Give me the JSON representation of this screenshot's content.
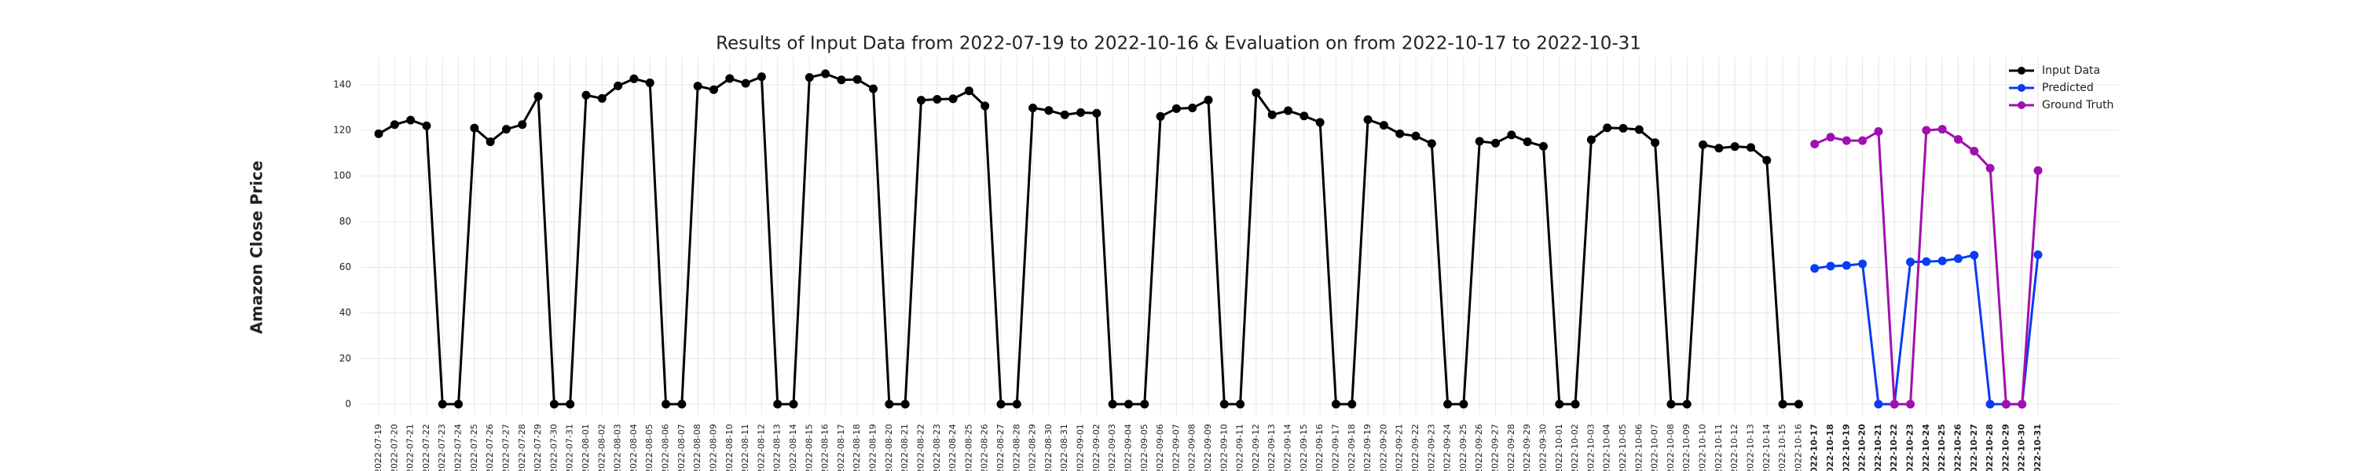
{
  "chart_data": {
    "type": "line",
    "title": "Results of Input Data from 2022-07-19 to 2022-10-16 & Evaluation on from 2022-10-17 to 2022-10-31",
    "ylabel": "Amazon Close Price",
    "categories": [
      "2022-07-19",
      "2022-07-20",
      "2022-07-21",
      "2022-07-22",
      "2022-07-23",
      "2022-07-24",
      "2022-07-25",
      "2022-07-26",
      "2022-07-27",
      "2022-07-28",
      "2022-07-29",
      "2022-07-30",
      "2022-07-31",
      "2022-08-01",
      "2022-08-02",
      "2022-08-03",
      "2022-08-04",
      "2022-08-05",
      "2022-08-06",
      "2022-08-07",
      "2022-08-08",
      "2022-08-09",
      "2022-08-10",
      "2022-08-11",
      "2022-08-12",
      "2022-08-13",
      "2022-08-14",
      "2022-08-15",
      "2022-08-16",
      "2022-08-17",
      "2022-08-18",
      "2022-08-19",
      "2022-08-20",
      "2022-08-21",
      "2022-08-22",
      "2022-08-23",
      "2022-08-24",
      "2022-08-25",
      "2022-08-26",
      "2022-08-27",
      "2022-08-28",
      "2022-08-29",
      "2022-08-30",
      "2022-08-31",
      "2022-09-01",
      "2022-09-02",
      "2022-09-03",
      "2022-09-04",
      "2022-09-05",
      "2022-09-06",
      "2022-09-07",
      "2022-09-08",
      "2022-09-09",
      "2022-09-10",
      "2022-09-11",
      "2022-09-12",
      "2022-09-13",
      "2022-09-14",
      "2022-09-15",
      "2022-09-16",
      "2022-09-17",
      "2022-09-18",
      "2022-09-19",
      "2022-09-20",
      "2022-09-21",
      "2022-09-22",
      "2022-09-23",
      "2022-09-24",
      "2022-09-25",
      "2022-09-26",
      "2022-09-27",
      "2022-09-28",
      "2022-09-29",
      "2022-09-30",
      "2022-10-01",
      "2022-10-02",
      "2022-10-03",
      "2022-10-04",
      "2022-10-05",
      "2022-10-06",
      "2022-10-07",
      "2022-10-08",
      "2022-10-09",
      "2022-10-10",
      "2022-10-11",
      "2022-10-12",
      "2022-10-13",
      "2022-10-14",
      "2022-10-15",
      "2022-10-16",
      "2022-10-17",
      "2022-10-18",
      "2022-10-19",
      "2022-10-20",
      "2022-10-21",
      "2022-10-22",
      "2022-10-23",
      "2022-10-24",
      "2022-10-25",
      "2022-10-26",
      "2022-10-27",
      "2022-10-28",
      "2022-10-29",
      "2022-10-30",
      "2022-10-31"
    ],
    "series": [
      {
        "name": "Input Data",
        "color": "#000000",
        "values": [
          118.5,
          122.5,
          124.5,
          122,
          0,
          0,
          121,
          115,
          120.5,
          122.5,
          134.9,
          0,
          0,
          135.4,
          134,
          139.5,
          142.6,
          140.8,
          0,
          0,
          139.4,
          137.8,
          142.7,
          140.6,
          143.5,
          0,
          0,
          143.2,
          144.8,
          142.1,
          142.3,
          138.2,
          0,
          0,
          133.2,
          133.6,
          133.8,
          137.3,
          130.7,
          0,
          0,
          129.8,
          128.7,
          126.8,
          127.8,
          127.5,
          0,
          0,
          0,
          126.1,
          129.5,
          129.8,
          133.3,
          0,
          0,
          136.5,
          126.8,
          128.6,
          126.3,
          123.5,
          0,
          0,
          124.7,
          122.2,
          118.5,
          117.5,
          114.2,
          0,
          0,
          115.2,
          114.4,
          118,
          115,
          113,
          0,
          0,
          115.9,
          121.1,
          120.9,
          120.3,
          114.6,
          0,
          0,
          113.7,
          112.2,
          112.9,
          112.5,
          106.9,
          0,
          0,
          null,
          null,
          null,
          null,
          null,
          null,
          null,
          null,
          null,
          null,
          null,
          null,
          null,
          null,
          null
        ]
      },
      {
        "name": "Predicted",
        "color": "#0a3cf0",
        "values": [
          null,
          null,
          null,
          null,
          null,
          null,
          null,
          null,
          null,
          null,
          null,
          null,
          null,
          null,
          null,
          null,
          null,
          null,
          null,
          null,
          null,
          null,
          null,
          null,
          null,
          null,
          null,
          null,
          null,
          null,
          null,
          null,
          null,
          null,
          null,
          null,
          null,
          null,
          null,
          null,
          null,
          null,
          null,
          null,
          null,
          null,
          null,
          null,
          null,
          null,
          null,
          null,
          null,
          null,
          null,
          null,
          null,
          null,
          null,
          null,
          null,
          null,
          null,
          null,
          null,
          null,
          null,
          null,
          null,
          null,
          null,
          null,
          null,
          null,
          null,
          null,
          null,
          null,
          null,
          null,
          null,
          null,
          null,
          null,
          null,
          null,
          null,
          null,
          null,
          null,
          59.5,
          60.5,
          60.8,
          61.5,
          0,
          0,
          62.3,
          62.5,
          62.8,
          63.8,
          65.3,
          0,
          0,
          0,
          65.5
        ]
      },
      {
        "name": "Ground Truth",
        "color": "#a010b0",
        "values": [
          null,
          null,
          null,
          null,
          null,
          null,
          null,
          null,
          null,
          null,
          null,
          null,
          null,
          null,
          null,
          null,
          null,
          null,
          null,
          null,
          null,
          null,
          null,
          null,
          null,
          null,
          null,
          null,
          null,
          null,
          null,
          null,
          null,
          null,
          null,
          null,
          null,
          null,
          null,
          null,
          null,
          null,
          null,
          null,
          null,
          null,
          null,
          null,
          null,
          null,
          null,
          null,
          null,
          null,
          null,
          null,
          null,
          null,
          null,
          null,
          null,
          null,
          null,
          null,
          null,
          null,
          null,
          null,
          null,
          null,
          null,
          null,
          null,
          null,
          null,
          null,
          null,
          null,
          null,
          null,
          null,
          null,
          null,
          null,
          null,
          null,
          null,
          null,
          null,
          null,
          114,
          117,
          115.5,
          115.5,
          119.5,
          0,
          0,
          120,
          120.5,
          116,
          110.9,
          103.4,
          0,
          0,
          102.4
        ]
      }
    ],
    "ylim": [
      -4.5,
      152
    ],
    "yticks": [
      0,
      20,
      40,
      60,
      80,
      100,
      120,
      140
    ],
    "grid": true,
    "legend": "upper right"
  }
}
